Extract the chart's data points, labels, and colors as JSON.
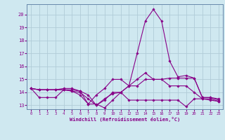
{
  "xlabel": "Windchill (Refroidissement éolien,°C)",
  "background_color": "#cfe8f0",
  "grid_color": "#b0ccd8",
  "line_color": "#880088",
  "spine_color": "#6688aa",
  "xlim": [
    -0.5,
    23.5
  ],
  "ylim": [
    12.7,
    20.8
  ],
  "xticks": [
    0,
    1,
    2,
    3,
    4,
    5,
    6,
    7,
    8,
    9,
    10,
    11,
    12,
    13,
    14,
    15,
    16,
    17,
    18,
    19,
    20,
    21,
    22,
    23
  ],
  "yticks": [
    13,
    14,
    15,
    16,
    17,
    18,
    19,
    20
  ],
  "series": [
    [
      14.3,
      13.6,
      13.6,
      13.6,
      14.2,
      14.2,
      14.1,
      13.1,
      13.1,
      12.8,
      13.4,
      14.0,
      13.4,
      13.4,
      13.4,
      13.4,
      13.4,
      13.4,
      13.4,
      12.9,
      13.5,
      13.5,
      13.4,
      13.3
    ],
    [
      14.3,
      14.2,
      14.2,
      14.2,
      14.2,
      14.1,
      13.8,
      13.1,
      13.8,
      14.3,
      15.0,
      15.0,
      14.5,
      14.5,
      15.0,
      15.0,
      15.0,
      15.1,
      15.1,
      15.1,
      15.1,
      13.6,
      13.6,
      13.5
    ],
    [
      14.3,
      14.2,
      14.2,
      14.2,
      14.3,
      14.3,
      14.1,
      13.8,
      13.0,
      13.5,
      13.9,
      14.0,
      14.5,
      17.0,
      19.5,
      20.4,
      19.5,
      16.4,
      15.2,
      15.3,
      15.1,
      13.6,
      13.6,
      13.4
    ],
    [
      14.3,
      14.2,
      14.2,
      14.2,
      14.2,
      14.1,
      14.0,
      13.5,
      13.0,
      13.4,
      14.0,
      14.0,
      14.5,
      15.0,
      15.5,
      15.0,
      15.0,
      14.5,
      14.5,
      14.5,
      14.0,
      13.5,
      13.5,
      13.3
    ]
  ]
}
